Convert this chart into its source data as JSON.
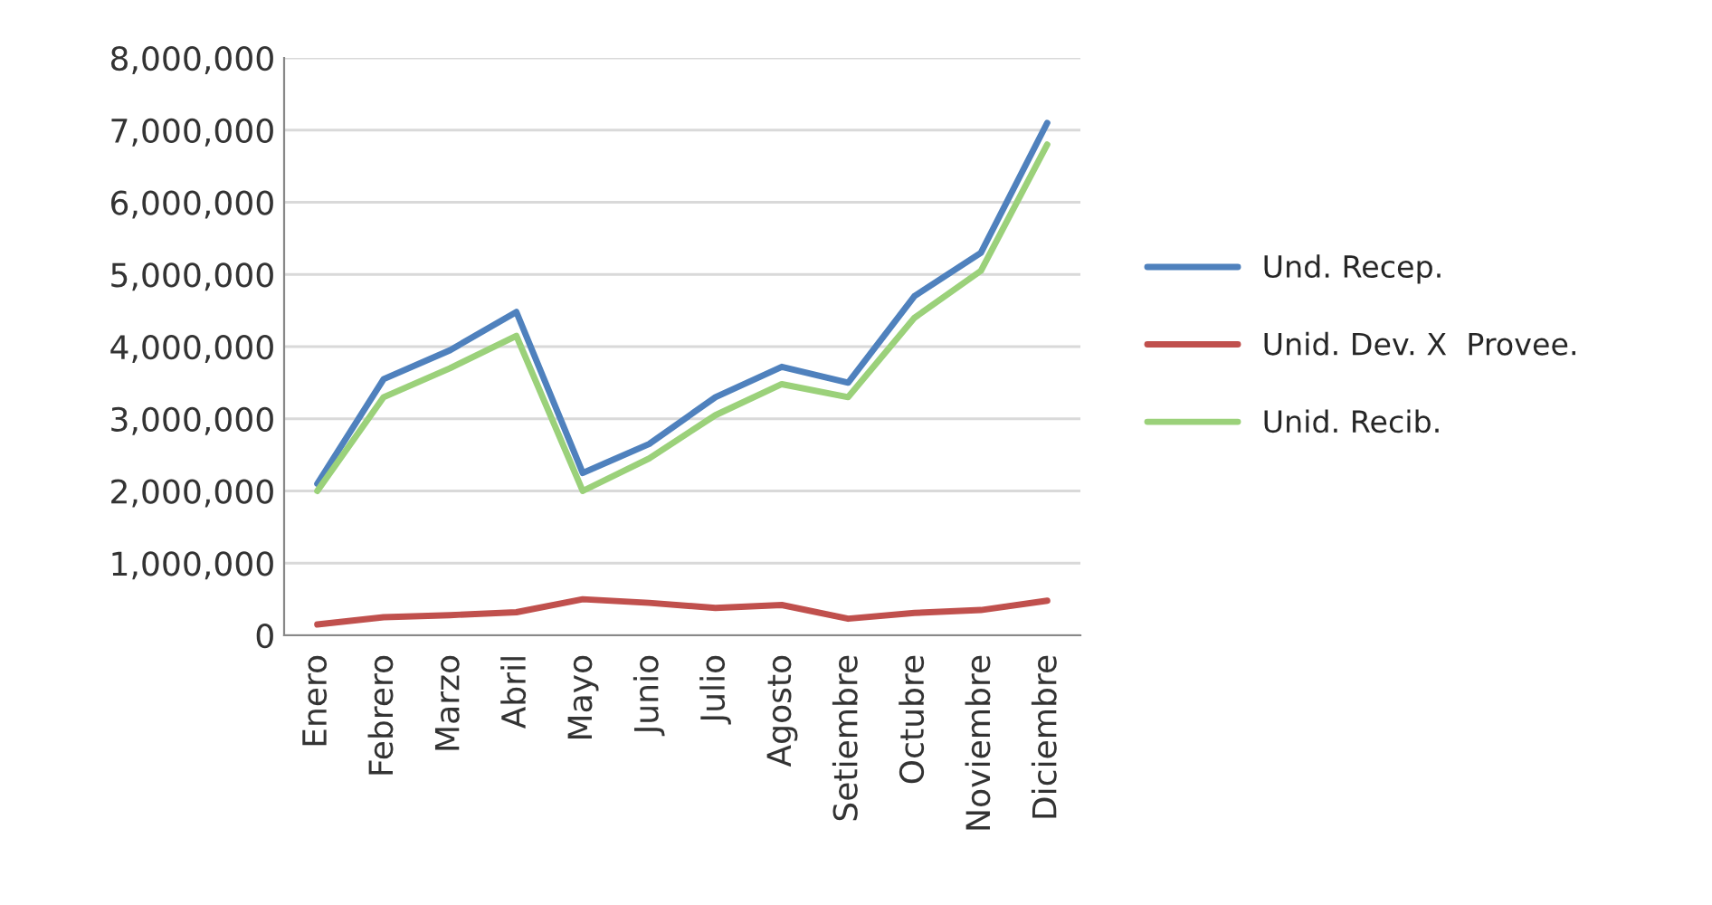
{
  "chart_data": {
    "type": "line",
    "categories": [
      "Enero",
      "Febrero",
      "Marzo",
      "Abril",
      "Mayo",
      "Junio",
      "Julio",
      "Agosto",
      "Setiembre",
      "Octubre",
      "Noviembre",
      "Diciembre"
    ],
    "series": [
      {
        "name": "Und. Recep.",
        "color": "#4f81bd",
        "values": [
          2100000,
          3550000,
          3950000,
          4480000,
          2250000,
          2650000,
          3300000,
          3720000,
          3500000,
          4700000,
          5300000,
          7100000
        ]
      },
      {
        "name": "Unid. Dev. X  Provee.",
        "color": "#c0504d",
        "values": [
          150000,
          250000,
          280000,
          320000,
          500000,
          450000,
          380000,
          420000,
          230000,
          310000,
          350000,
          480000
        ]
      },
      {
        "name": "Unid. Recib.",
        "color": "#9bd17a",
        "values": [
          2000000,
          3300000,
          3700000,
          4150000,
          2000000,
          2450000,
          3050000,
          3480000,
          3300000,
          4400000,
          5050000,
          6800000
        ]
      }
    ],
    "ylim": [
      0,
      8000000
    ],
    "yticks": [
      {
        "value": 0,
        "label": "0"
      },
      {
        "value": 1000000,
        "label": "1,000,000"
      },
      {
        "value": 2000000,
        "label": "2,000,000"
      },
      {
        "value": 3000000,
        "label": "3,000,000"
      },
      {
        "value": 4000000,
        "label": "4,000,000"
      },
      {
        "value": 5000000,
        "label": "5,000,000"
      },
      {
        "value": 6000000,
        "label": "6,000,000"
      },
      {
        "value": 7000000,
        "label": "7,000,000"
      },
      {
        "value": 8000000,
        "label": "8,000,000"
      }
    ],
    "grid": "y",
    "legend": "right"
  }
}
